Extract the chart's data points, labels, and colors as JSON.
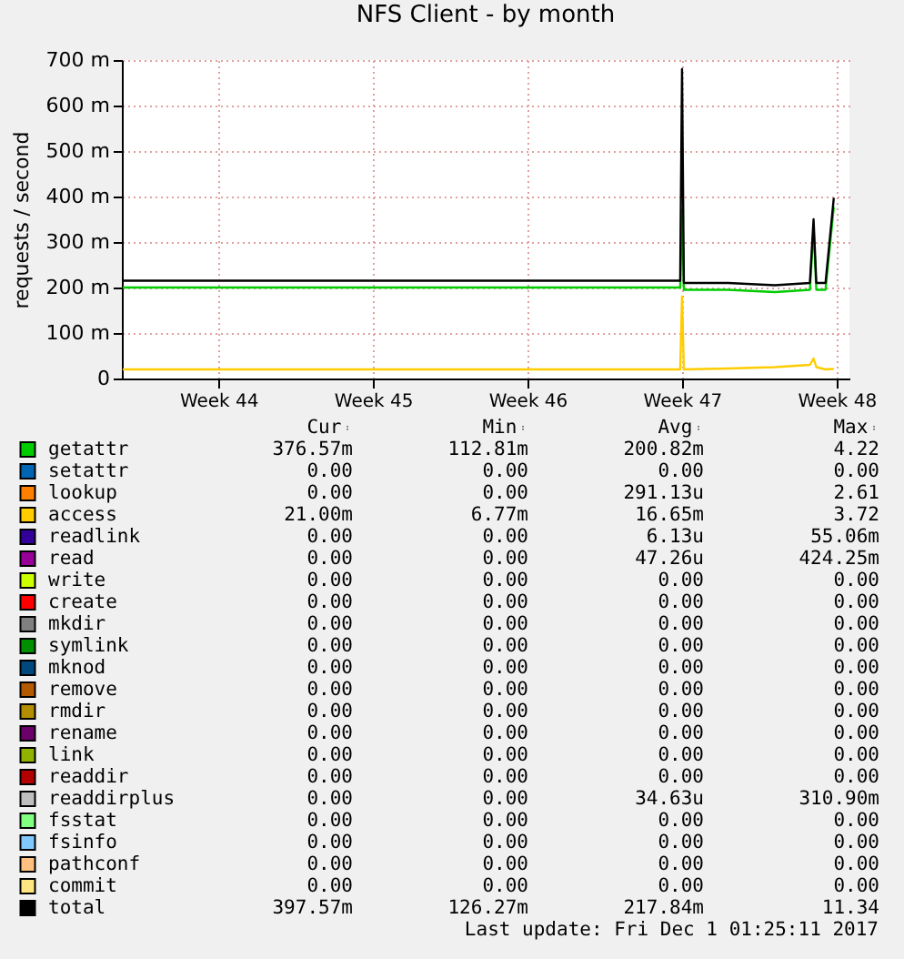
{
  "chart_data": [
    {
      "type": "line",
      "title": "NFS Client - by month",
      "ylabel": "requests / second",
      "grid": true,
      "legend": "bottom",
      "x": [
        "2017-10-29T04:00",
        "2017-11-06T00:00",
        "2017-11-13T00:00",
        "2017-11-20T00:00",
        "2017-11-23T10:00",
        "2017-11-23T12:00",
        "2017-11-23T14:00",
        "2017-11-25T14:00",
        "2017-11-27T17:00",
        "2017-11-29T07:00",
        "2017-11-29T11:00",
        "2017-11-29T14:00",
        "2017-11-30T00:00",
        "2017-11-30T09:00"
      ],
      "xlim": [
        "2017-10-29T03:00",
        "2017-12-01T02:00"
      ],
      "xticks": [
        {
          "value": "2017-11-02T12:00",
          "label": "Week 44"
        },
        {
          "value": "2017-11-09T12:00",
          "label": "Week 45"
        },
        {
          "value": "2017-11-16T12:00",
          "label": "Week 46"
        },
        {
          "value": "2017-11-23T12:00",
          "label": "Week 47"
        },
        {
          "value": "2017-11-30T12:00",
          "label": "Week 48"
        }
      ],
      "ylim": [
        0,
        700
      ],
      "yticks": [
        0,
        {
          "value": 100,
          "label": "100 m"
        },
        {
          "value": 200,
          "label": "200 m"
        },
        {
          "value": 300,
          "label": "300 m"
        },
        {
          "value": 400,
          "label": "400 m"
        },
        {
          "value": 500,
          "label": "500 m"
        },
        {
          "value": 600,
          "label": "600 m"
        },
        {
          "value": 700,
          "label": "700 m"
        }
      ],
      "series": [
        {
          "name": "getattr",
          "color": "#00cc00",
          "values": [
            200,
            200,
            200,
            200,
            200,
            370,
            195,
            195,
            190,
            195,
            330,
            195,
            195,
            377
          ]
        },
        {
          "name": "setattr",
          "color": "#0066b3",
          "values": [
            null,
            null,
            null,
            null,
            null,
            null,
            null,
            null,
            null,
            null,
            null,
            null,
            null,
            null
          ]
        },
        {
          "name": "lookup",
          "color": "#ff8000",
          "values": [
            null,
            null,
            null,
            null,
            null,
            null,
            null,
            null,
            null,
            null,
            null,
            null,
            null,
            null
          ]
        },
        {
          "name": "access",
          "color": "#ffcc00",
          "values": [
            20,
            20,
            20,
            20,
            20,
            180,
            20,
            22,
            25,
            30,
            44,
            25,
            20,
            21
          ]
        },
        {
          "name": "readlink",
          "color": "#330099",
          "values": [
            null,
            null,
            null,
            null,
            null,
            null,
            null,
            null,
            null,
            null,
            null,
            null,
            null,
            null
          ]
        },
        {
          "name": "read",
          "color": "#990099",
          "values": [
            null,
            null,
            null,
            null,
            null,
            null,
            null,
            null,
            null,
            null,
            null,
            null,
            null,
            null
          ]
        },
        {
          "name": "write",
          "color": "#ccff00",
          "values": [
            null,
            null,
            null,
            null,
            null,
            null,
            null,
            null,
            null,
            null,
            null,
            null,
            null,
            null
          ]
        },
        {
          "name": "create",
          "color": "#ff0000",
          "values": [
            null,
            null,
            null,
            null,
            null,
            null,
            null,
            null,
            null,
            null,
            null,
            null,
            null,
            null
          ]
        },
        {
          "name": "mkdir",
          "color": "#808080",
          "values": [
            null,
            null,
            null,
            null,
            null,
            null,
            null,
            null,
            null,
            null,
            null,
            null,
            null,
            null
          ]
        },
        {
          "name": "symlink",
          "color": "#008f00",
          "values": [
            null,
            null,
            null,
            null,
            null,
            null,
            null,
            null,
            null,
            null,
            null,
            null,
            null,
            null
          ]
        },
        {
          "name": "mknod",
          "color": "#00487d",
          "values": [
            null,
            null,
            null,
            null,
            null,
            null,
            null,
            null,
            null,
            null,
            null,
            null,
            null,
            null
          ]
        },
        {
          "name": "remove",
          "color": "#b35a00",
          "values": [
            null,
            null,
            null,
            null,
            null,
            null,
            null,
            null,
            null,
            null,
            null,
            null,
            null,
            null
          ]
        },
        {
          "name": "rmdir",
          "color": "#b38f00",
          "values": [
            null,
            null,
            null,
            null,
            null,
            null,
            null,
            null,
            null,
            null,
            null,
            null,
            null,
            null
          ]
        },
        {
          "name": "rename",
          "color": "#6b006b",
          "values": [
            null,
            null,
            null,
            null,
            null,
            null,
            null,
            null,
            null,
            null,
            null,
            null,
            null,
            null
          ]
        },
        {
          "name": "link",
          "color": "#8fb300",
          "values": [
            null,
            null,
            null,
            null,
            null,
            null,
            null,
            null,
            null,
            null,
            null,
            null,
            null,
            null
          ]
        },
        {
          "name": "readdir",
          "color": "#b30000",
          "values": [
            null,
            null,
            null,
            null,
            null,
            null,
            null,
            null,
            null,
            null,
            null,
            null,
            null,
            null
          ]
        },
        {
          "name": "readdirplus",
          "color": "#bebebe",
          "values": [
            null,
            null,
            null,
            null,
            null,
            null,
            null,
            null,
            null,
            null,
            null,
            null,
            null,
            null
          ]
        },
        {
          "name": "fsstat",
          "color": "#80ff80",
          "values": [
            null,
            null,
            null,
            null,
            null,
            null,
            null,
            null,
            null,
            null,
            null,
            null,
            null,
            null
          ]
        },
        {
          "name": "fsinfo",
          "color": "#80c9ff",
          "values": [
            null,
            null,
            null,
            null,
            null,
            null,
            null,
            null,
            null,
            null,
            null,
            null,
            null,
            null
          ]
        },
        {
          "name": "pathconf",
          "color": "#ffc080",
          "values": [
            null,
            null,
            null,
            null,
            null,
            null,
            null,
            null,
            null,
            null,
            null,
            null,
            null,
            null
          ]
        },
        {
          "name": "commit",
          "color": "#ffe680",
          "values": [
            null,
            null,
            null,
            null,
            null,
            null,
            null,
            null,
            null,
            null,
            null,
            null,
            null,
            null
          ]
        },
        {
          "name": "total",
          "color": "#000000",
          "values": [
            215,
            215,
            215,
            215,
            215,
            680,
            210,
            210,
            205,
            210,
            350,
            210,
            210,
            397
          ]
        }
      ]
    },
    {
      "type": "other",
      "categories": [
        "Cur",
        "Min",
        "Avg",
        "Max"
      ],
      "cell_labels": [
        [
          "376.57m",
          "112.81m",
          "200.82m",
          "4.22"
        ],
        [
          "0.00",
          "0.00",
          "0.00",
          "0.00"
        ],
        [
          "0.00",
          "0.00",
          "291.13u",
          "2.61"
        ],
        [
          "21.00m",
          "6.77m",
          "16.65m",
          "3.72"
        ],
        [
          "0.00",
          "0.00",
          "6.13u",
          "55.06m"
        ],
        [
          "0.00",
          "0.00",
          "47.26u",
          "424.25m"
        ],
        [
          "0.00",
          "0.00",
          "0.00",
          "0.00"
        ],
        [
          "0.00",
          "0.00",
          "0.00",
          "0.00"
        ],
        [
          "0.00",
          "0.00",
          "0.00",
          "0.00"
        ],
        [
          "0.00",
          "0.00",
          "0.00",
          "0.00"
        ],
        [
          "0.00",
          "0.00",
          "0.00",
          "0.00"
        ],
        [
          "0.00",
          "0.00",
          "0.00",
          "0.00"
        ],
        [
          "0.00",
          "0.00",
          "0.00",
          "0.00"
        ],
        [
          "0.00",
          "0.00",
          "0.00",
          "0.00"
        ],
        [
          "0.00",
          "0.00",
          "0.00",
          "0.00"
        ],
        [
          "0.00",
          "0.00",
          "0.00",
          "0.00"
        ],
        [
          "0.00",
          "0.00",
          "34.63u",
          "310.90m"
        ],
        [
          "0.00",
          "0.00",
          "0.00",
          "0.00"
        ],
        [
          "0.00",
          "0.00",
          "0.00",
          "0.00"
        ],
        [
          "0.00",
          "0.00",
          "0.00",
          "0.00"
        ],
        [
          "0.00",
          "0.00",
          "0.00",
          "0.00"
        ],
        [
          "397.57m",
          "126.27m",
          "217.84m",
          "11.34"
        ]
      ],
      "annotations": [
        "Last update: Fri Dec  1 01:25:11 2017"
      ]
    }
  ]
}
